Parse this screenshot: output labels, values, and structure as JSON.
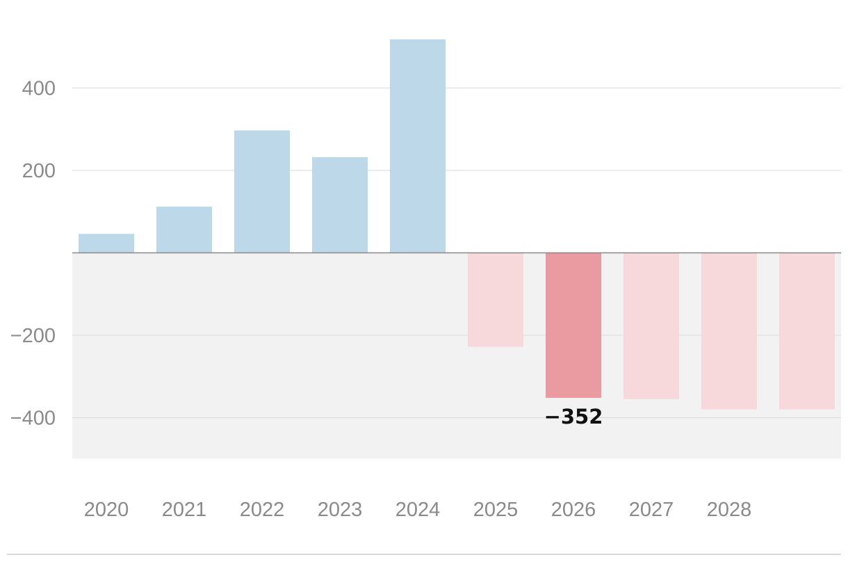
{
  "chart_data": {
    "type": "bar",
    "categories": [
      "2020",
      "2021",
      "2022",
      "2023",
      "2024",
      "2025",
      "2026",
      "2027",
      "2028",
      ""
    ],
    "values": [
      46,
      112,
      297,
      232,
      518,
      -228,
      -352,
      -355,
      -380,
      -380
    ],
    "ylim": [
      -500,
      520
    ],
    "yticks": [
      -400,
      -200,
      200,
      400
    ],
    "ytick_labels": [
      "−400",
      "−200",
      "200",
      "400"
    ],
    "highlight_index": 6,
    "data_labels": [
      {
        "index": 6,
        "text": "−352"
      }
    ],
    "grid": true,
    "negative_region_shaded": true,
    "colors": {
      "positive": "#bcd8e9",
      "negative": "#f7d9dc",
      "negative_highlight": "#ea9aa1",
      "negative_band": "#f2f2f2",
      "gridline": "#d9d9d9",
      "zero_line": "#888888",
      "footer_rule": "#d9d9d9",
      "tick_text": "#8a8a8a",
      "label_text": "#111111"
    }
  }
}
